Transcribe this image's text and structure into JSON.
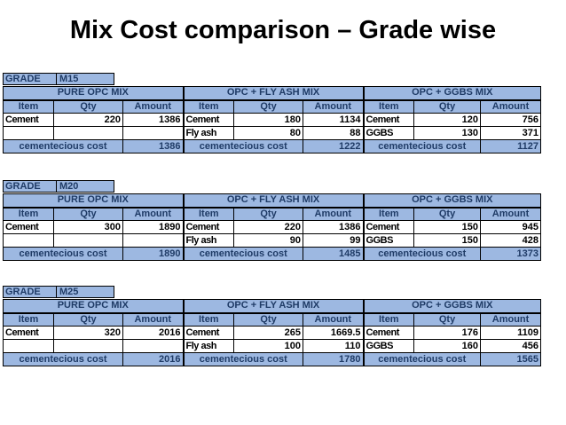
{
  "title": "Mix Cost comparison – Grade wise",
  "grade_key": "GRADE",
  "headers": {
    "item": "Item",
    "qty": "Qty",
    "amount": "Amount"
  },
  "sections": {
    "opc": "PURE OPC MIX",
    "fly": "OPC + FLY ASH MIX",
    "ggbs": "OPC + GGBS MIX"
  },
  "cost_label": "cementecious cost",
  "colors": {
    "header_fill": "#9db8e1",
    "header_text": "#1f3b66"
  },
  "grades": [
    {
      "grade": "M15",
      "opc": {
        "item": "Cement",
        "qty": "220",
        "amount": "1386",
        "cost": "1386"
      },
      "fly": {
        "row1": {
          "item": "Cement",
          "qty": "180",
          "amount": "1134"
        },
        "row2": {
          "item": "Fly ash",
          "qty": "80",
          "amount": "88"
        },
        "cost": "1222"
      },
      "ggbs": {
        "row1": {
          "item": "Cement",
          "qty": "120",
          "amount": "756"
        },
        "row2": {
          "item": "GGBS",
          "qty": "130",
          "amount": "371"
        },
        "cost": "1127"
      }
    },
    {
      "grade": "M20",
      "opc": {
        "item": "Cement",
        "qty": "300",
        "amount": "1890",
        "cost": "1890"
      },
      "fly": {
        "row1": {
          "item": "Cement",
          "qty": "220",
          "amount": "1386"
        },
        "row2": {
          "item": "Fly ash",
          "qty": "90",
          "amount": "99"
        },
        "cost": "1485"
      },
      "ggbs": {
        "row1": {
          "item": "Cement",
          "qty": "150",
          "amount": "945"
        },
        "row2": {
          "item": "GGBS",
          "qty": "150",
          "amount": "428"
        },
        "cost": "1373"
      }
    },
    {
      "grade": "M25",
      "opc": {
        "item": "Cement",
        "qty": "320",
        "amount": "2016",
        "cost": "2016"
      },
      "fly": {
        "row1": {
          "item": "Cement",
          "qty": "265",
          "amount": "1669.5"
        },
        "row2": {
          "item": "Fly ash",
          "qty": "100",
          "amount": "110"
        },
        "cost": "1780"
      },
      "ggbs": {
        "row1": {
          "item": "Cement",
          "qty": "176",
          "amount": "1109"
        },
        "row2": {
          "item": "GGBS",
          "qty": "160",
          "amount": "456"
        },
        "cost": "1565"
      }
    }
  ]
}
